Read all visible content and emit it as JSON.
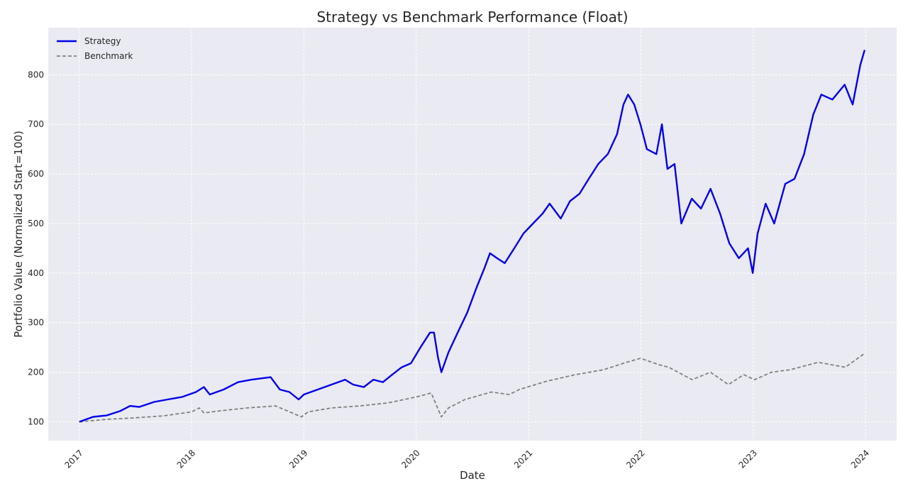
{
  "chart_data": {
    "type": "line",
    "title": "Strategy vs Benchmark Performance (Float)",
    "xlabel": "Date",
    "ylabel": "Portfolio Value (Normalized Start=100)",
    "xlim": [
      "2016-09-22",
      "2024-04-11"
    ],
    "ylim": [
      62,
      895
    ],
    "x_ticks": [
      "2017",
      "2018",
      "2019",
      "2020",
      "2021",
      "2022",
      "2023",
      "2024"
    ],
    "y_ticks": [
      100,
      200,
      300,
      400,
      500,
      600,
      700,
      800
    ],
    "grid": true,
    "legend": "top-left",
    "colors": {
      "plot_bg": "#eaeaf2",
      "grid": "#ffffff",
      "strategy": "#0000ee",
      "benchmark": "#808080"
    },
    "series": [
      {
        "name": "Strategy",
        "style": "solid",
        "x": [
          "2017-01-01",
          "2017-02-15",
          "2017-04-01",
          "2017-05-15",
          "2017-06-15",
          "2017-07-15",
          "2017-09-01",
          "2017-10-15",
          "2017-12-01",
          "2018-01-15",
          "2018-02-10",
          "2018-03-01",
          "2018-04-15",
          "2018-06-01",
          "2018-07-15",
          "2018-09-15",
          "2018-10-15",
          "2018-11-15",
          "2018-12-15",
          "2019-01-01",
          "2019-02-15",
          "2019-04-01",
          "2019-05-15",
          "2019-06-10",
          "2019-07-15",
          "2019-08-15",
          "2019-09-15",
          "2019-10-15",
          "2019-11-15",
          "2019-12-15",
          "2020-01-15",
          "2020-02-15",
          "2020-02-28",
          "2020-03-12",
          "2020-03-23",
          "2020-04-15",
          "2020-05-15",
          "2020-06-15",
          "2020-07-15",
          "2020-08-10",
          "2020-08-28",
          "2020-09-20",
          "2020-10-15",
          "2020-11-15",
          "2020-12-15",
          "2021-01-15",
          "2021-02-15",
          "2021-03-10",
          "2021-04-15",
          "2021-05-15",
          "2021-06-15",
          "2021-07-15",
          "2021-08-15",
          "2021-09-15",
          "2021-10-15",
          "2021-11-05",
          "2021-11-20",
          "2021-12-10",
          "2021-12-30",
          "2022-01-20",
          "2022-02-20",
          "2022-03-10",
          "2022-03-28",
          "2022-04-20",
          "2022-05-12",
          "2022-06-15",
          "2022-07-15",
          "2022-08-15",
          "2022-09-15",
          "2022-10-15",
          "2022-11-15",
          "2022-12-15",
          "2022-12-30",
          "2023-01-15",
          "2023-02-10",
          "2023-03-10",
          "2023-04-15",
          "2023-05-15",
          "2023-06-15",
          "2023-07-15",
          "2023-08-10",
          "2023-09-15",
          "2023-10-25",
          "2023-11-20",
          "2023-12-15",
          "2023-12-29"
        ],
        "y": [
          100,
          110,
          113,
          122,
          132,
          130,
          140,
          145,
          150,
          160,
          170,
          155,
          165,
          180,
          185,
          190,
          165,
          160,
          145,
          155,
          165,
          175,
          185,
          175,
          170,
          185,
          180,
          195,
          210,
          218,
          250,
          280,
          280,
          230,
          200,
          240,
          280,
          320,
          370,
          410,
          440,
          430,
          420,
          450,
          480,
          500,
          520,
          540,
          510,
          545,
          560,
          590,
          620,
          640,
          680,
          740,
          760,
          740,
          700,
          650,
          640,
          700,
          610,
          620,
          500,
          550,
          530,
          570,
          520,
          460,
          430,
          450,
          400,
          480,
          540,
          500,
          580,
          590,
          640,
          720,
          760,
          750,
          780,
          740,
          820,
          850
        ]
      },
      {
        "name": "Benchmark",
        "style": "dashed",
        "x": [
          "2017-01-01",
          "2017-04-01",
          "2017-07-01",
          "2017-10-01",
          "2018-01-01",
          "2018-01-26",
          "2018-02-10",
          "2018-04-01",
          "2018-07-01",
          "2018-10-01",
          "2018-12-24",
          "2019-01-15",
          "2019-04-01",
          "2019-07-01",
          "2019-10-01",
          "2020-01-01",
          "2020-02-19",
          "2020-03-23",
          "2020-04-15",
          "2020-06-08",
          "2020-09-01",
          "2020-10-30",
          "2020-12-01",
          "2021-03-01",
          "2021-06-01",
          "2021-09-01",
          "2021-11-15",
          "2021-12-30",
          "2022-03-01",
          "2022-04-01",
          "2022-06-16",
          "2022-08-15",
          "2022-10-12",
          "2022-12-01",
          "2023-01-05",
          "2023-03-01",
          "2023-05-01",
          "2023-07-31",
          "2023-10-27",
          "2023-12-29"
        ],
        "y": [
          100,
          105,
          108,
          112,
          120,
          128,
          118,
          122,
          128,
          132,
          110,
          120,
          128,
          132,
          138,
          150,
          158,
          110,
          128,
          145,
          160,
          155,
          165,
          182,
          195,
          205,
          220,
          228,
          215,
          210,
          185,
          200,
          175,
          195,
          185,
          200,
          205,
          220,
          210,
          238
        ]
      }
    ]
  }
}
